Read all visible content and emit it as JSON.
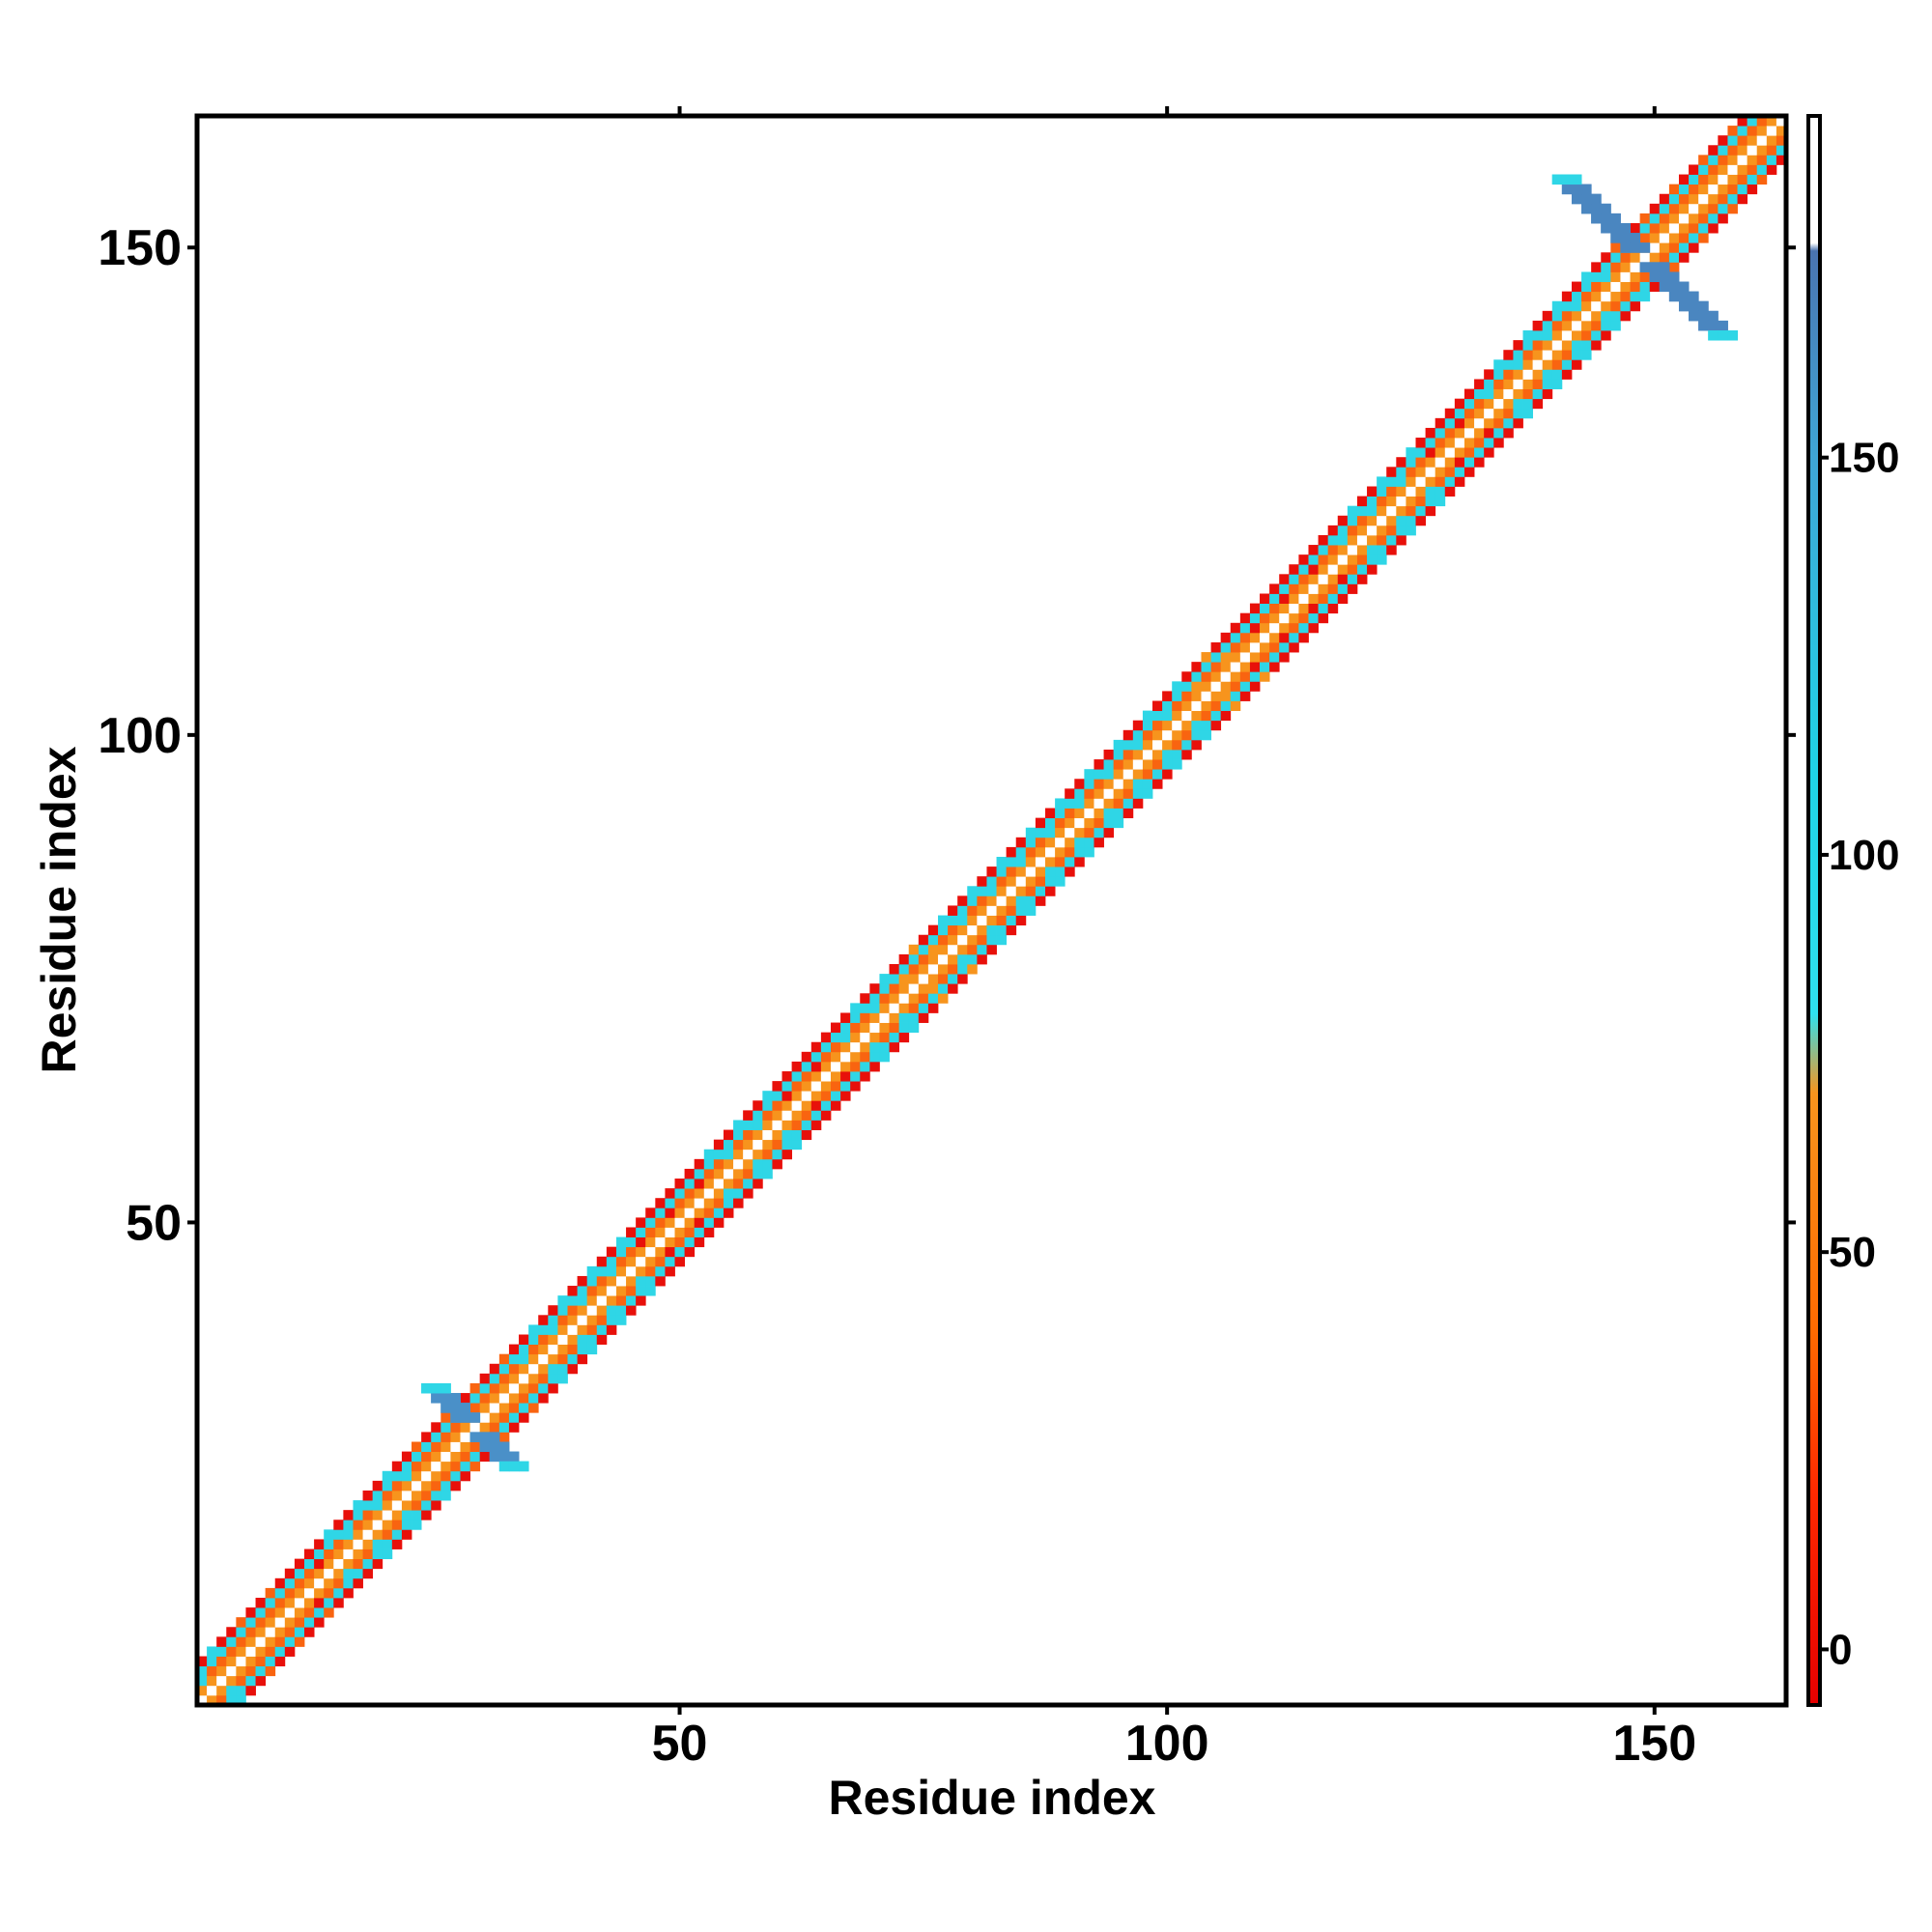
{
  "chart_data": {
    "type": "heatmap",
    "title": "",
    "xlabel": "Residue index",
    "ylabel": "Residue index",
    "xlim": [
      0.5,
      163.5
    ],
    "ylim": [
      0.5,
      163.5
    ],
    "x_ticks": [
      50,
      100,
      150
    ],
    "y_ticks": [
      50,
      100,
      150
    ],
    "x_tick_labels": [
      "50",
      "100",
      "150"
    ],
    "y_tick_labels": [
      "50",
      "100",
      "150"
    ],
    "n_residues": 163,
    "grid": false,
    "colorbar": {
      "ticks": [
        0,
        50,
        100,
        150
      ],
      "tick_labels": [
        "0",
        "50",
        "100",
        "150"
      ],
      "range": [
        -7,
        193
      ],
      "bands": [
        {
          "from": -7,
          "to": 25,
          "color": "#e8100a"
        },
        {
          "from": 25,
          "to": 75,
          "color": "#f96410"
        },
        {
          "from": 75,
          "to": 175,
          "color": "#2fd6e6"
        },
        {
          "from": 175,
          "to": 193,
          "color": "#ffffff"
        }
      ]
    },
    "diagonal_band": {
      "description_values": "contacts concentrated along the diagonal within |i-j|<=4",
      "color_pattern_by_offset": {
        "0": "#ffffff",
        "1": "#f7941d",
        "2": "#f96410",
        "3": "#2fd6e6",
        "4": "#e8100a"
      }
    },
    "segments": [
      {
        "start": 1,
        "end": 3,
        "dominant": "#2fd6e6"
      },
      {
        "start": 4,
        "end": 10,
        "dominant": "#f96410"
      },
      {
        "start": 11,
        "end": 13,
        "dominant": "#e8100a"
      },
      {
        "start": 14,
        "end": 22,
        "dominant": "#2fd6e6"
      },
      {
        "start": 23,
        "end": 33,
        "dominant": "#f96410"
      },
      {
        "start": 34,
        "end": 45,
        "dominant": "#2fd6e6"
      },
      {
        "start": 46,
        "end": 52,
        "dominant": "#e8100a"
      },
      {
        "start": 53,
        "end": 60,
        "dominant": "#2fd6e6"
      },
      {
        "start": 61,
        "end": 66,
        "dominant": "#e8100a"
      },
      {
        "start": 67,
        "end": 72,
        "dominant": "#2fd6e6"
      },
      {
        "start": 73,
        "end": 76,
        "dominant": "#f7941d"
      },
      {
        "start": 77,
        "end": 102,
        "dominant": "#2fd6e6"
      },
      {
        "start": 103,
        "end": 106,
        "dominant": "#f7941d"
      },
      {
        "start": 107,
        "end": 116,
        "dominant": "#e8100a"
      },
      {
        "start": 117,
        "end": 125,
        "dominant": "#2fd6e6"
      },
      {
        "start": 126,
        "end": 132,
        "dominant": "#e8100a"
      },
      {
        "start": 133,
        "end": 145,
        "dominant": "#2fd6e6"
      },
      {
        "start": 146,
        "end": 163,
        "dominant": "#f96410"
      }
    ],
    "crosses": [
      {
        "center_x": 29,
        "center_y": 29,
        "arm_length": 4,
        "color": "#4a90c8"
      },
      {
        "center_x": 149,
        "center_y": 149,
        "arm_length": 8,
        "color": "#4a86c0"
      }
    ]
  }
}
